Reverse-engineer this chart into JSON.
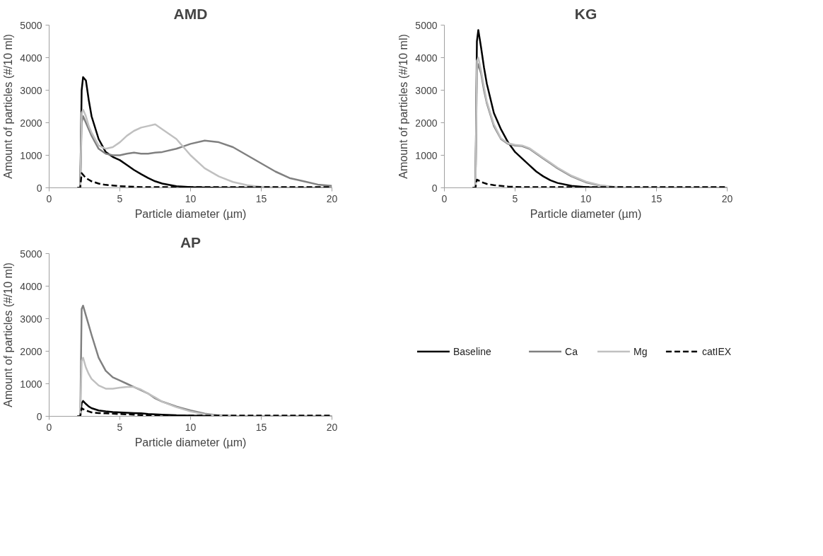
{
  "chart_data": [
    {
      "type": "line",
      "title": "AMD",
      "xlabel": "Particle diameter (µm)",
      "ylabel": "Amount of particles (#/10 ml)",
      "xlim": [
        0,
        20
      ],
      "xticks": [
        0,
        5,
        10,
        15,
        20
      ],
      "ylim": [
        0,
        5000
      ],
      "yticks": [
        0,
        1000,
        2000,
        3000,
        4000,
        5000
      ],
      "grid": false,
      "marker": "none",
      "x": [
        2,
        2.2,
        2.3,
        2.4,
        2.6,
        2.8,
        3,
        3.5,
        4,
        4.5,
        5,
        5.5,
        6,
        6.5,
        7,
        7.5,
        8,
        9,
        10,
        11,
        12,
        13,
        14,
        15,
        16,
        17,
        18,
        19,
        20
      ],
      "series": [
        {
          "color": "#000000",
          "line_style": "solid",
          "values": [
            0,
            0,
            3000,
            3400,
            3300,
            2700,
            2200,
            1500,
            1100,
            950,
            850,
            700,
            550,
            420,
            300,
            200,
            130,
            50,
            20,
            10,
            0,
            0,
            0,
            0,
            0,
            0,
            0,
            0,
            0
          ]
        },
        {
          "color": "#808080",
          "line_style": "solid",
          "values": [
            0,
            0,
            2000,
            2200,
            2000,
            1800,
            1600,
            1200,
            1050,
            1000,
            1000,
            1050,
            1080,
            1050,
            1050,
            1080,
            1100,
            1200,
            1350,
            1450,
            1400,
            1250,
            1000,
            750,
            500,
            300,
            200,
            100,
            60
          ]
        },
        {
          "color": "#c0c0c0",
          "line_style": "solid",
          "values": [
            0,
            0,
            2300,
            2400,
            2200,
            1900,
            1700,
            1300,
            1200,
            1250,
            1400,
            1600,
            1750,
            1850,
            1900,
            1950,
            1800,
            1500,
            1000,
            600,
            350,
            180,
            80,
            30,
            10,
            0,
            0,
            0,
            0
          ]
        },
        {
          "color": "#000000",
          "line_style": "dashed",
          "values": [
            0,
            0,
            450,
            400,
            300,
            250,
            200,
            130,
            90,
            70,
            50,
            40,
            30,
            20,
            20,
            20,
            20,
            20,
            20,
            20,
            20,
            20,
            20,
            20,
            20,
            20,
            20,
            20,
            20
          ]
        }
      ]
    },
    {
      "type": "line",
      "title": "KG",
      "xlabel": "Particle diameter (µm)",
      "ylabel": "Amount of particles (#/10 ml)",
      "xlim": [
        0,
        20
      ],
      "xticks": [
        0,
        5,
        10,
        15,
        20
      ],
      "ylim": [
        0,
        5000
      ],
      "yticks": [
        0,
        1000,
        2000,
        3000,
        4000,
        5000
      ],
      "grid": false,
      "marker": "none",
      "x": [
        2,
        2.2,
        2.3,
        2.4,
        2.6,
        2.8,
        3,
        3.5,
        4,
        4.5,
        5,
        5.5,
        6,
        6.5,
        7,
        7.5,
        8,
        9,
        10,
        11,
        12,
        13,
        14,
        15,
        16,
        17,
        18,
        19,
        20
      ],
      "series": [
        {
          "color": "#000000",
          "line_style": "solid",
          "values": [
            0,
            0,
            4500,
            4850,
            4300,
            3700,
            3200,
            2300,
            1800,
            1400,
            1100,
            900,
            700,
            500,
            350,
            230,
            150,
            60,
            20,
            0,
            0,
            0,
            0,
            0,
            0,
            0,
            0,
            0,
            0
          ]
        },
        {
          "color": "#808080",
          "line_style": "solid",
          "values": [
            0,
            0,
            3600,
            3800,
            3500,
            3000,
            2600,
            1900,
            1500,
            1350,
            1300,
            1280,
            1200,
            1050,
            900,
            750,
            600,
            350,
            170,
            70,
            20,
            0,
            0,
            0,
            0,
            0,
            0,
            0,
            0
          ]
        },
        {
          "color": "#c0c0c0",
          "line_style": "solid",
          "values": [
            0,
            0,
            3900,
            4000,
            3600,
            3100,
            2650,
            1950,
            1520,
            1370,
            1320,
            1300,
            1220,
            1070,
            920,
            770,
            620,
            370,
            190,
            80,
            30,
            0,
            0,
            0,
            0,
            0,
            0,
            0,
            0
          ]
        },
        {
          "color": "#000000",
          "line_style": "dashed",
          "values": [
            0,
            0,
            250,
            230,
            180,
            150,
            120,
            80,
            60,
            40,
            30,
            20,
            20,
            20,
            20,
            20,
            20,
            20,
            20,
            20,
            20,
            20,
            20,
            20,
            20,
            20,
            20,
            20,
            20
          ]
        }
      ]
    },
    {
      "type": "line",
      "title": "AP",
      "xlabel": "Particle diameter (µm)",
      "ylabel": "Amount of particles (#/10 ml)",
      "xlim": [
        0,
        20
      ],
      "xticks": [
        0,
        5,
        10,
        15,
        20
      ],
      "ylim": [
        0,
        5000
      ],
      "yticks": [
        0,
        1000,
        2000,
        3000,
        4000,
        5000
      ],
      "grid": false,
      "marker": "none",
      "legend": "right",
      "x": [
        2,
        2.2,
        2.3,
        2.4,
        2.6,
        2.8,
        3,
        3.5,
        4,
        4.5,
        5,
        5.5,
        6,
        6.5,
        7,
        7.5,
        8,
        9,
        10,
        11,
        12,
        13,
        14,
        15,
        16,
        17,
        18,
        19,
        20
      ],
      "series": [
        {
          "name": "Baseline",
          "color": "#000000",
          "line_style": "solid",
          "values": [
            0,
            0,
            400,
            470,
            380,
            300,
            250,
            180,
            150,
            130,
            120,
            110,
            100,
            90,
            70,
            60,
            50,
            30,
            20,
            10,
            0,
            0,
            0,
            0,
            0,
            0,
            0,
            0,
            0
          ]
        },
        {
          "name": "Ca",
          "color": "#808080",
          "line_style": "solid",
          "values": [
            0,
            0,
            3300,
            3400,
            3100,
            2800,
            2500,
            1800,
            1400,
            1200,
            1100,
            1000,
            900,
            800,
            700,
            550,
            450,
            300,
            180,
            80,
            30,
            10,
            0,
            0,
            0,
            0,
            0,
            0,
            0
          ]
        },
        {
          "name": "Mg",
          "color": "#c0c0c0",
          "line_style": "solid",
          "values": [
            0,
            0,
            1700,
            1800,
            1500,
            1300,
            1150,
            950,
            850,
            850,
            880,
            900,
            900,
            820,
            700,
            580,
            450,
            280,
            150,
            60,
            20,
            0,
            0,
            0,
            0,
            0,
            0,
            0,
            0
          ]
        },
        {
          "name": "catIEX",
          "color": "#000000",
          "line_style": "dashed",
          "values": [
            0,
            0,
            250,
            220,
            180,
            150,
            120,
            100,
            90,
            80,
            70,
            60,
            50,
            40,
            30,
            20,
            20,
            20,
            20,
            20,
            20,
            20,
            20,
            20,
            20,
            20,
            20,
            20,
            20
          ]
        }
      ]
    }
  ]
}
